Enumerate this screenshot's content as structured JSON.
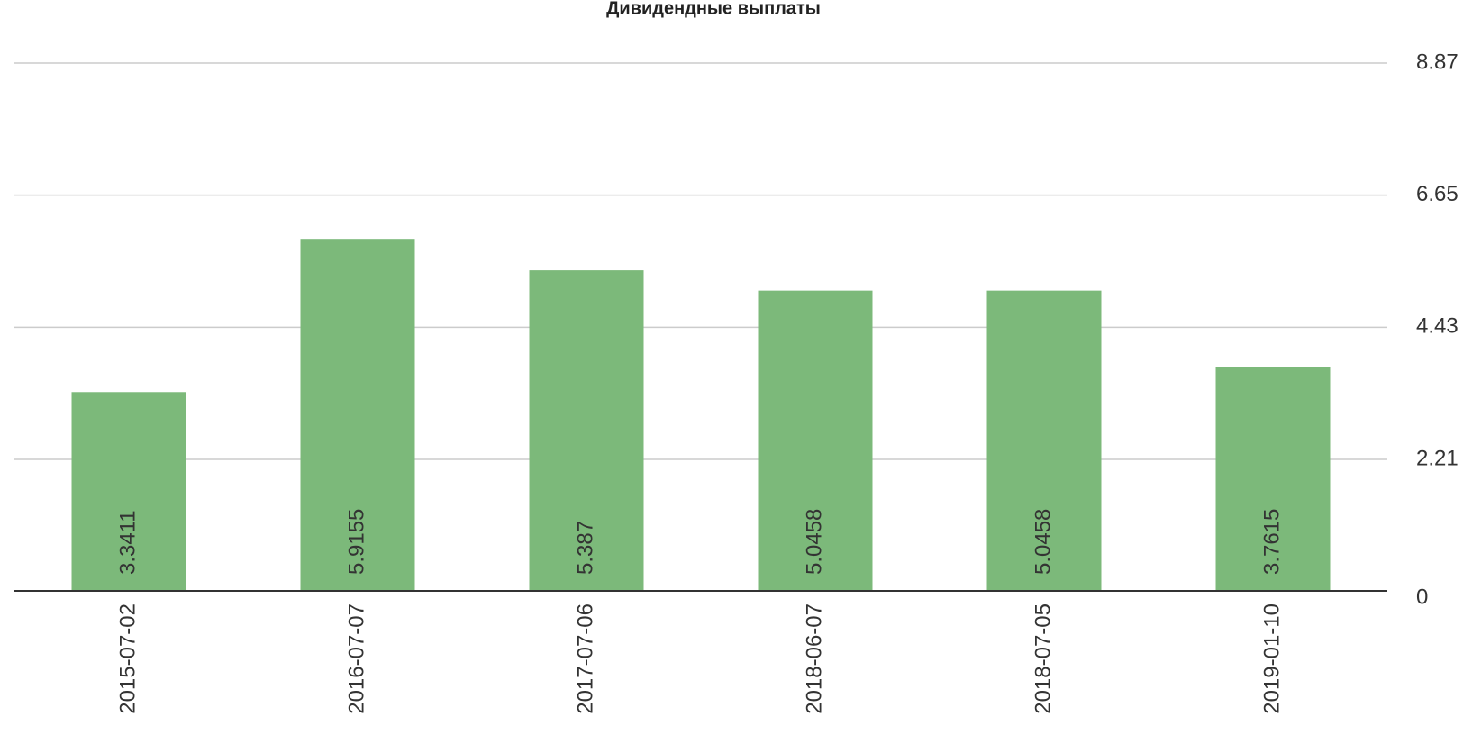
{
  "chart_data": {
    "type": "bar",
    "title": "Дивидендные выплаты",
    "categories": [
      "2015-07-02",
      "2016-07-07",
      "2017-07-06",
      "2018-06-07",
      "2018-07-05",
      "2019-01-10"
    ],
    "values": [
      3.3411,
      5.9155,
      5.387,
      5.0458,
      5.0458,
      3.7615
    ],
    "color": "#7cb97a",
    "ylim": [
      0,
      8.87
    ],
    "yticks": [
      0,
      2.21,
      4.43,
      6.65,
      8.87
    ],
    "y_axis_side": "right",
    "grid": true
  }
}
